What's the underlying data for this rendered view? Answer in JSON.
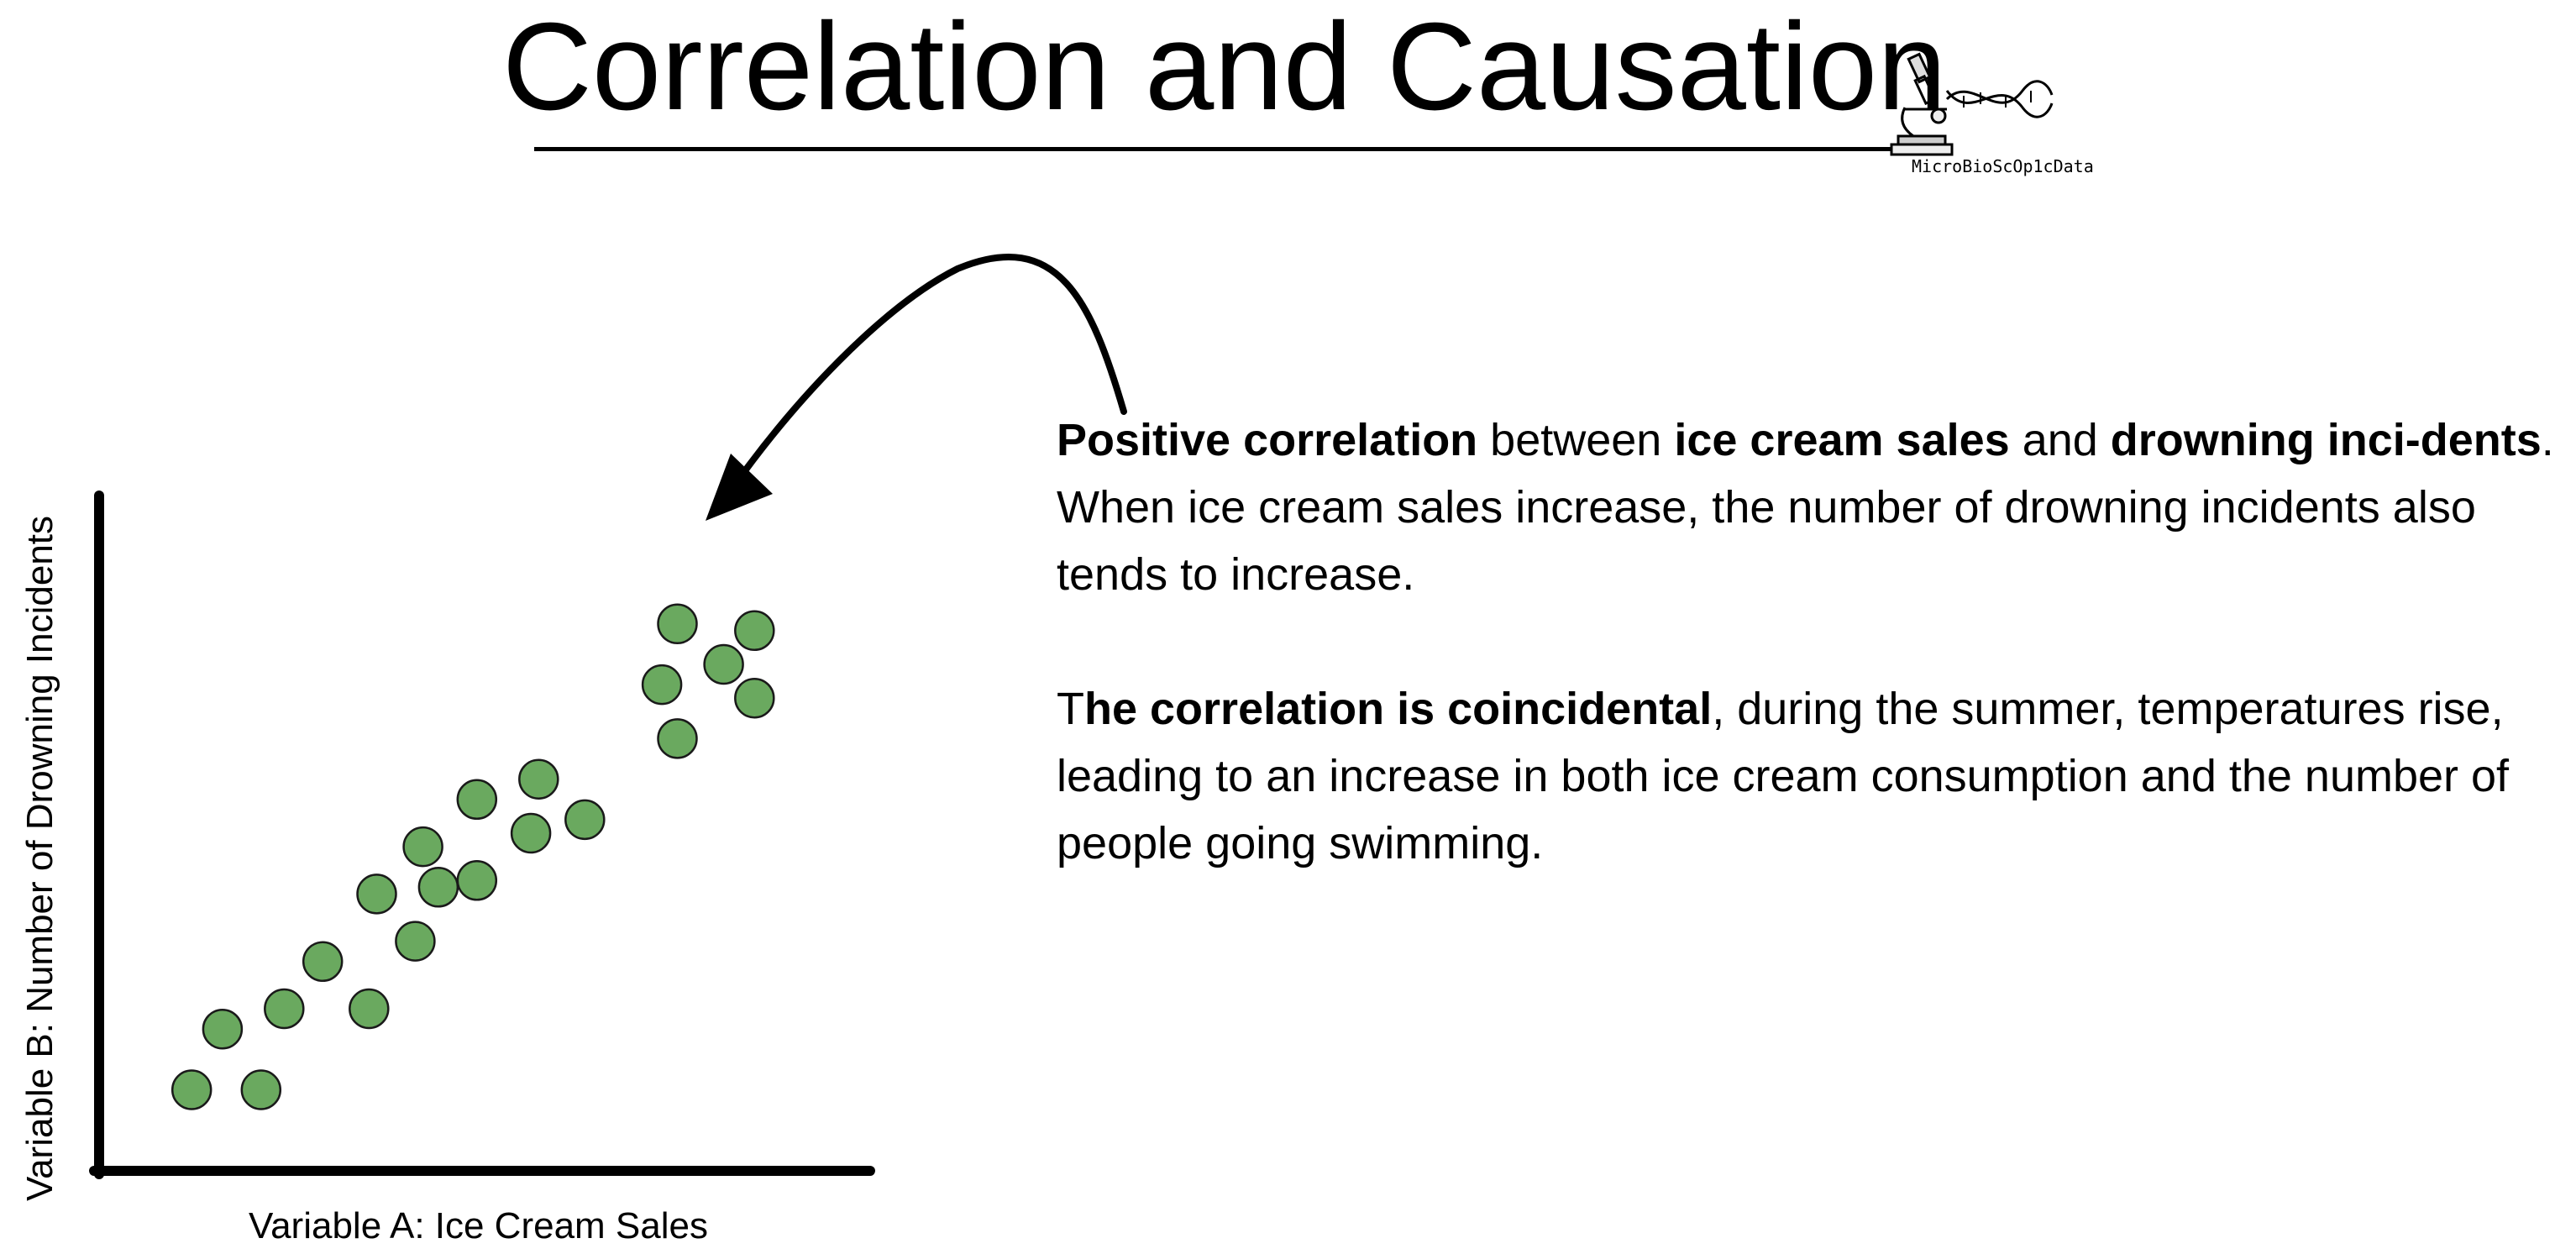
{
  "title": "Correlation and Causation",
  "logo": {
    "text": "MicroBioScOp1cData",
    "icons": [
      "microscope-icon",
      "dna-icon"
    ]
  },
  "colors": {
    "points": "#6aa95f",
    "point_outline": "#1a1a1a",
    "axes": "#000000"
  },
  "chart_data": {
    "type": "scatter",
    "xlabel": "Variable A: Ice Cream Sales",
    "ylabel": "Variable B: Number of Drowning Incidents",
    "points": [
      {
        "x": 1.2,
        "y": 1.2
      },
      {
        "x": 2.1,
        "y": 1.2
      },
      {
        "x": 1.6,
        "y": 2.1
      },
      {
        "x": 2.4,
        "y": 2.4
      },
      {
        "x": 3.5,
        "y": 2.4
      },
      {
        "x": 2.9,
        "y": 3.1
      },
      {
        "x": 4.1,
        "y": 3.4
      },
      {
        "x": 3.6,
        "y": 4.1
      },
      {
        "x": 4.4,
        "y": 4.2
      },
      {
        "x": 4.9,
        "y": 4.3
      },
      {
        "x": 4.2,
        "y": 4.8
      },
      {
        "x": 5.6,
        "y": 5.0
      },
      {
        "x": 6.3,
        "y": 5.2
      },
      {
        "x": 4.9,
        "y": 5.5
      },
      {
        "x": 5.7,
        "y": 5.8
      },
      {
        "x": 7.5,
        "y": 6.4
      },
      {
        "x": 7.3,
        "y": 7.2
      },
      {
        "x": 8.5,
        "y": 7.0
      },
      {
        "x": 8.1,
        "y": 7.5
      },
      {
        "x": 7.5,
        "y": 8.1
      },
      {
        "x": 8.5,
        "y": 8.0
      }
    ],
    "xlim": [
      0,
      10
    ],
    "ylim": [
      0,
      10
    ],
    "grid": false,
    "legend": "none"
  },
  "text": {
    "p1": [
      {
        "t": "Positive correlation",
        "b": true
      },
      {
        "t": " between ",
        "b": false
      },
      {
        "t": "ice cream sales",
        "b": true
      },
      {
        "t": " and ",
        "b": false
      },
      {
        "t": "drowning inci-dents",
        "b": true
      },
      {
        "t": ". When ice cream sales increase, the number of drowning incidents also tends to increase.",
        "b": false
      }
    ],
    "p2": [
      {
        "t": "T",
        "b": false
      },
      {
        "t": "he correlation is coincidental",
        "b": true
      },
      {
        "t": ", during the summer, temperatures rise, leading to an increase in both ice cream consumption and the number of people going swimming.",
        "b": false
      }
    ]
  }
}
